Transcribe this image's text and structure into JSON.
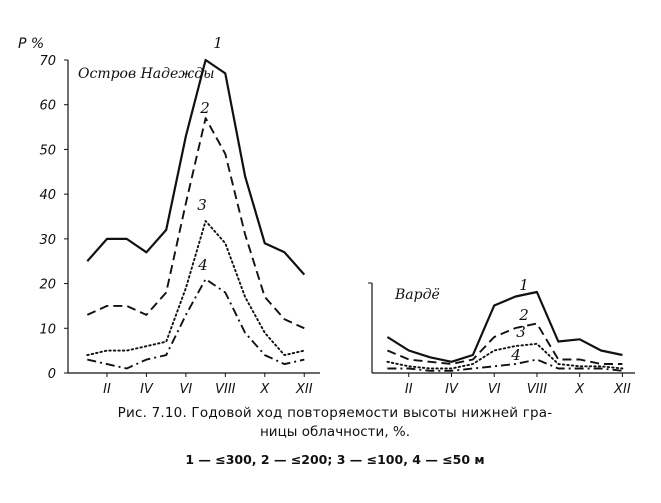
{
  "chart_data": [
    {
      "type": "line",
      "title": "Остров Надежды",
      "ylabel": "P %",
      "xlabel": "",
      "ylim": [
        0,
        70
      ],
      "yticks": [
        "0",
        "10",
        "20",
        "30",
        "40",
        "50",
        "60",
        "70"
      ],
      "xticks": [
        "II",
        "IV",
        "VI",
        "VIII",
        "X",
        "XII"
      ],
      "x": [
        1,
        2,
        3,
        4,
        5,
        6,
        7,
        8,
        9,
        10,
        11,
        12
      ],
      "series": [
        {
          "name": "1",
          "style": "solid",
          "values": [
            25,
            30,
            30,
            27,
            32,
            53,
            70,
            67,
            44,
            29,
            27,
            22
          ]
        },
        {
          "name": "2",
          "style": "dashed",
          "values": [
            13,
            15,
            15,
            13,
            18,
            38,
            57,
            49,
            31,
            17,
            12,
            10
          ]
        },
        {
          "name": "3",
          "style": "dotted",
          "values": [
            4,
            5,
            5,
            6,
            7,
            19,
            34,
            29,
            17,
            9,
            4,
            5
          ]
        },
        {
          "name": "4",
          "style": "dashdot",
          "values": [
            3,
            2,
            1,
            3,
            4,
            13,
            21,
            18,
            9,
            4,
            2,
            3
          ]
        }
      ]
    },
    {
      "type": "line",
      "title": "Вардё",
      "ylabel": "",
      "xlabel": "",
      "ylim": [
        0,
        20
      ],
      "xticks": [
        "II",
        "IV",
        "VI",
        "VIII",
        "X",
        "XII"
      ],
      "x": [
        1,
        2,
        3,
        4,
        5,
        6,
        7,
        8,
        9,
        10,
        11,
        12
      ],
      "series": [
        {
          "name": "1",
          "style": "solid",
          "values": [
            8,
            5,
            3.5,
            2.5,
            4,
            15,
            17,
            18,
            7,
            7.5,
            5,
            4
          ]
        },
        {
          "name": "2",
          "style": "dashed",
          "values": [
            5,
            3,
            2.5,
            2,
            3,
            8,
            10,
            11,
            3,
            3,
            2,
            2
          ]
        },
        {
          "name": "3",
          "style": "dotted",
          "values": [
            2.5,
            1.5,
            1,
            1,
            2,
            5,
            6,
            6.5,
            2,
            1.5,
            1.5,
            1
          ]
        },
        {
          "name": "4",
          "style": "dashdot",
          "values": [
            1,
            1,
            0.5,
            0.5,
            1,
            1.5,
            2,
            3,
            1,
            1,
            1,
            0.5
          ]
        }
      ]
    }
  ],
  "caption": {
    "line1": "Рис. 7.10. Годовой ход повторяемости высоты нижней гра-",
    "line2": "ницы облачности, %.",
    "legend": "1 — ≤300,  2 — ≤200;  3 — ≤100,  4 — ≤50  м"
  }
}
